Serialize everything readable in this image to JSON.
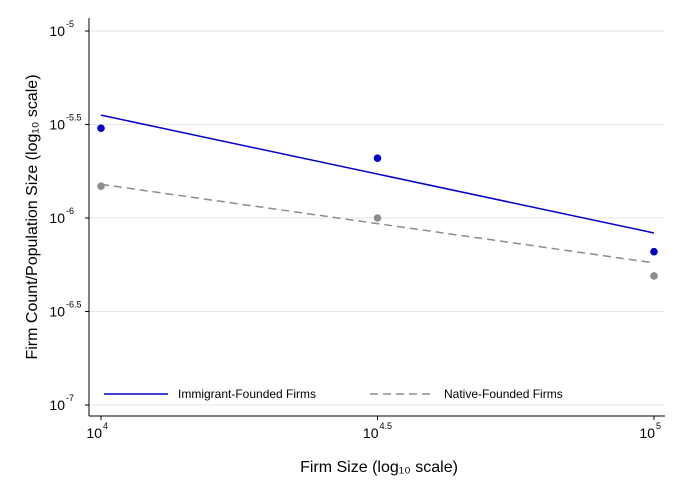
{
  "chart_data": {
    "type": "scatter",
    "xlabel": "Firm Size (log₁₀ scale)",
    "ylabel": "Firm Count/Population Size (log₁₀ scale)",
    "x_scale": "log10",
    "y_scale": "log10",
    "xlim_log10": [
      4,
      5
    ],
    "ylim_log10": [
      -7,
      -5
    ],
    "x_ticks": [
      {
        "base": "10",
        "exp": "4",
        "log10": 4
      },
      {
        "base": "10",
        "exp": "4.5",
        "log10": 4.5
      },
      {
        "base": "10",
        "exp": "5",
        "log10": 5
      }
    ],
    "y_ticks": [
      {
        "base": "10",
        "exp": "-5",
        "log10": -5
      },
      {
        "base": "10",
        "exp": "-5.5",
        "log10": -5.5
      },
      {
        "base": "10",
        "exp": "-6",
        "log10": -6
      },
      {
        "base": "10",
        "exp": "-6.5",
        "log10": -6.5
      },
      {
        "base": "10",
        "exp": "-7",
        "log10": -7
      }
    ],
    "grid": "horizontal",
    "legend_position": "bottom",
    "series": [
      {
        "name": "Immigrant-Founded Firms",
        "color": "#0000cc",
        "line_style": "solid",
        "points_log10": [
          [
            4,
            -5.52
          ],
          [
            4.5,
            -5.68
          ],
          [
            5,
            -6.18
          ]
        ],
        "fit_log10": [
          [
            4,
            -5.45
          ],
          [
            5,
            -6.08
          ]
        ]
      },
      {
        "name": "Native-Founded Firms",
        "color": "#8c8c8c",
        "line_style": "dashed",
        "points_log10": [
          [
            4,
            -5.83
          ],
          [
            4.5,
            -6.0
          ],
          [
            5,
            -6.31
          ]
        ],
        "fit_log10": [
          [
            4,
            -5.82
          ],
          [
            5,
            -6.24
          ]
        ]
      }
    ]
  }
}
